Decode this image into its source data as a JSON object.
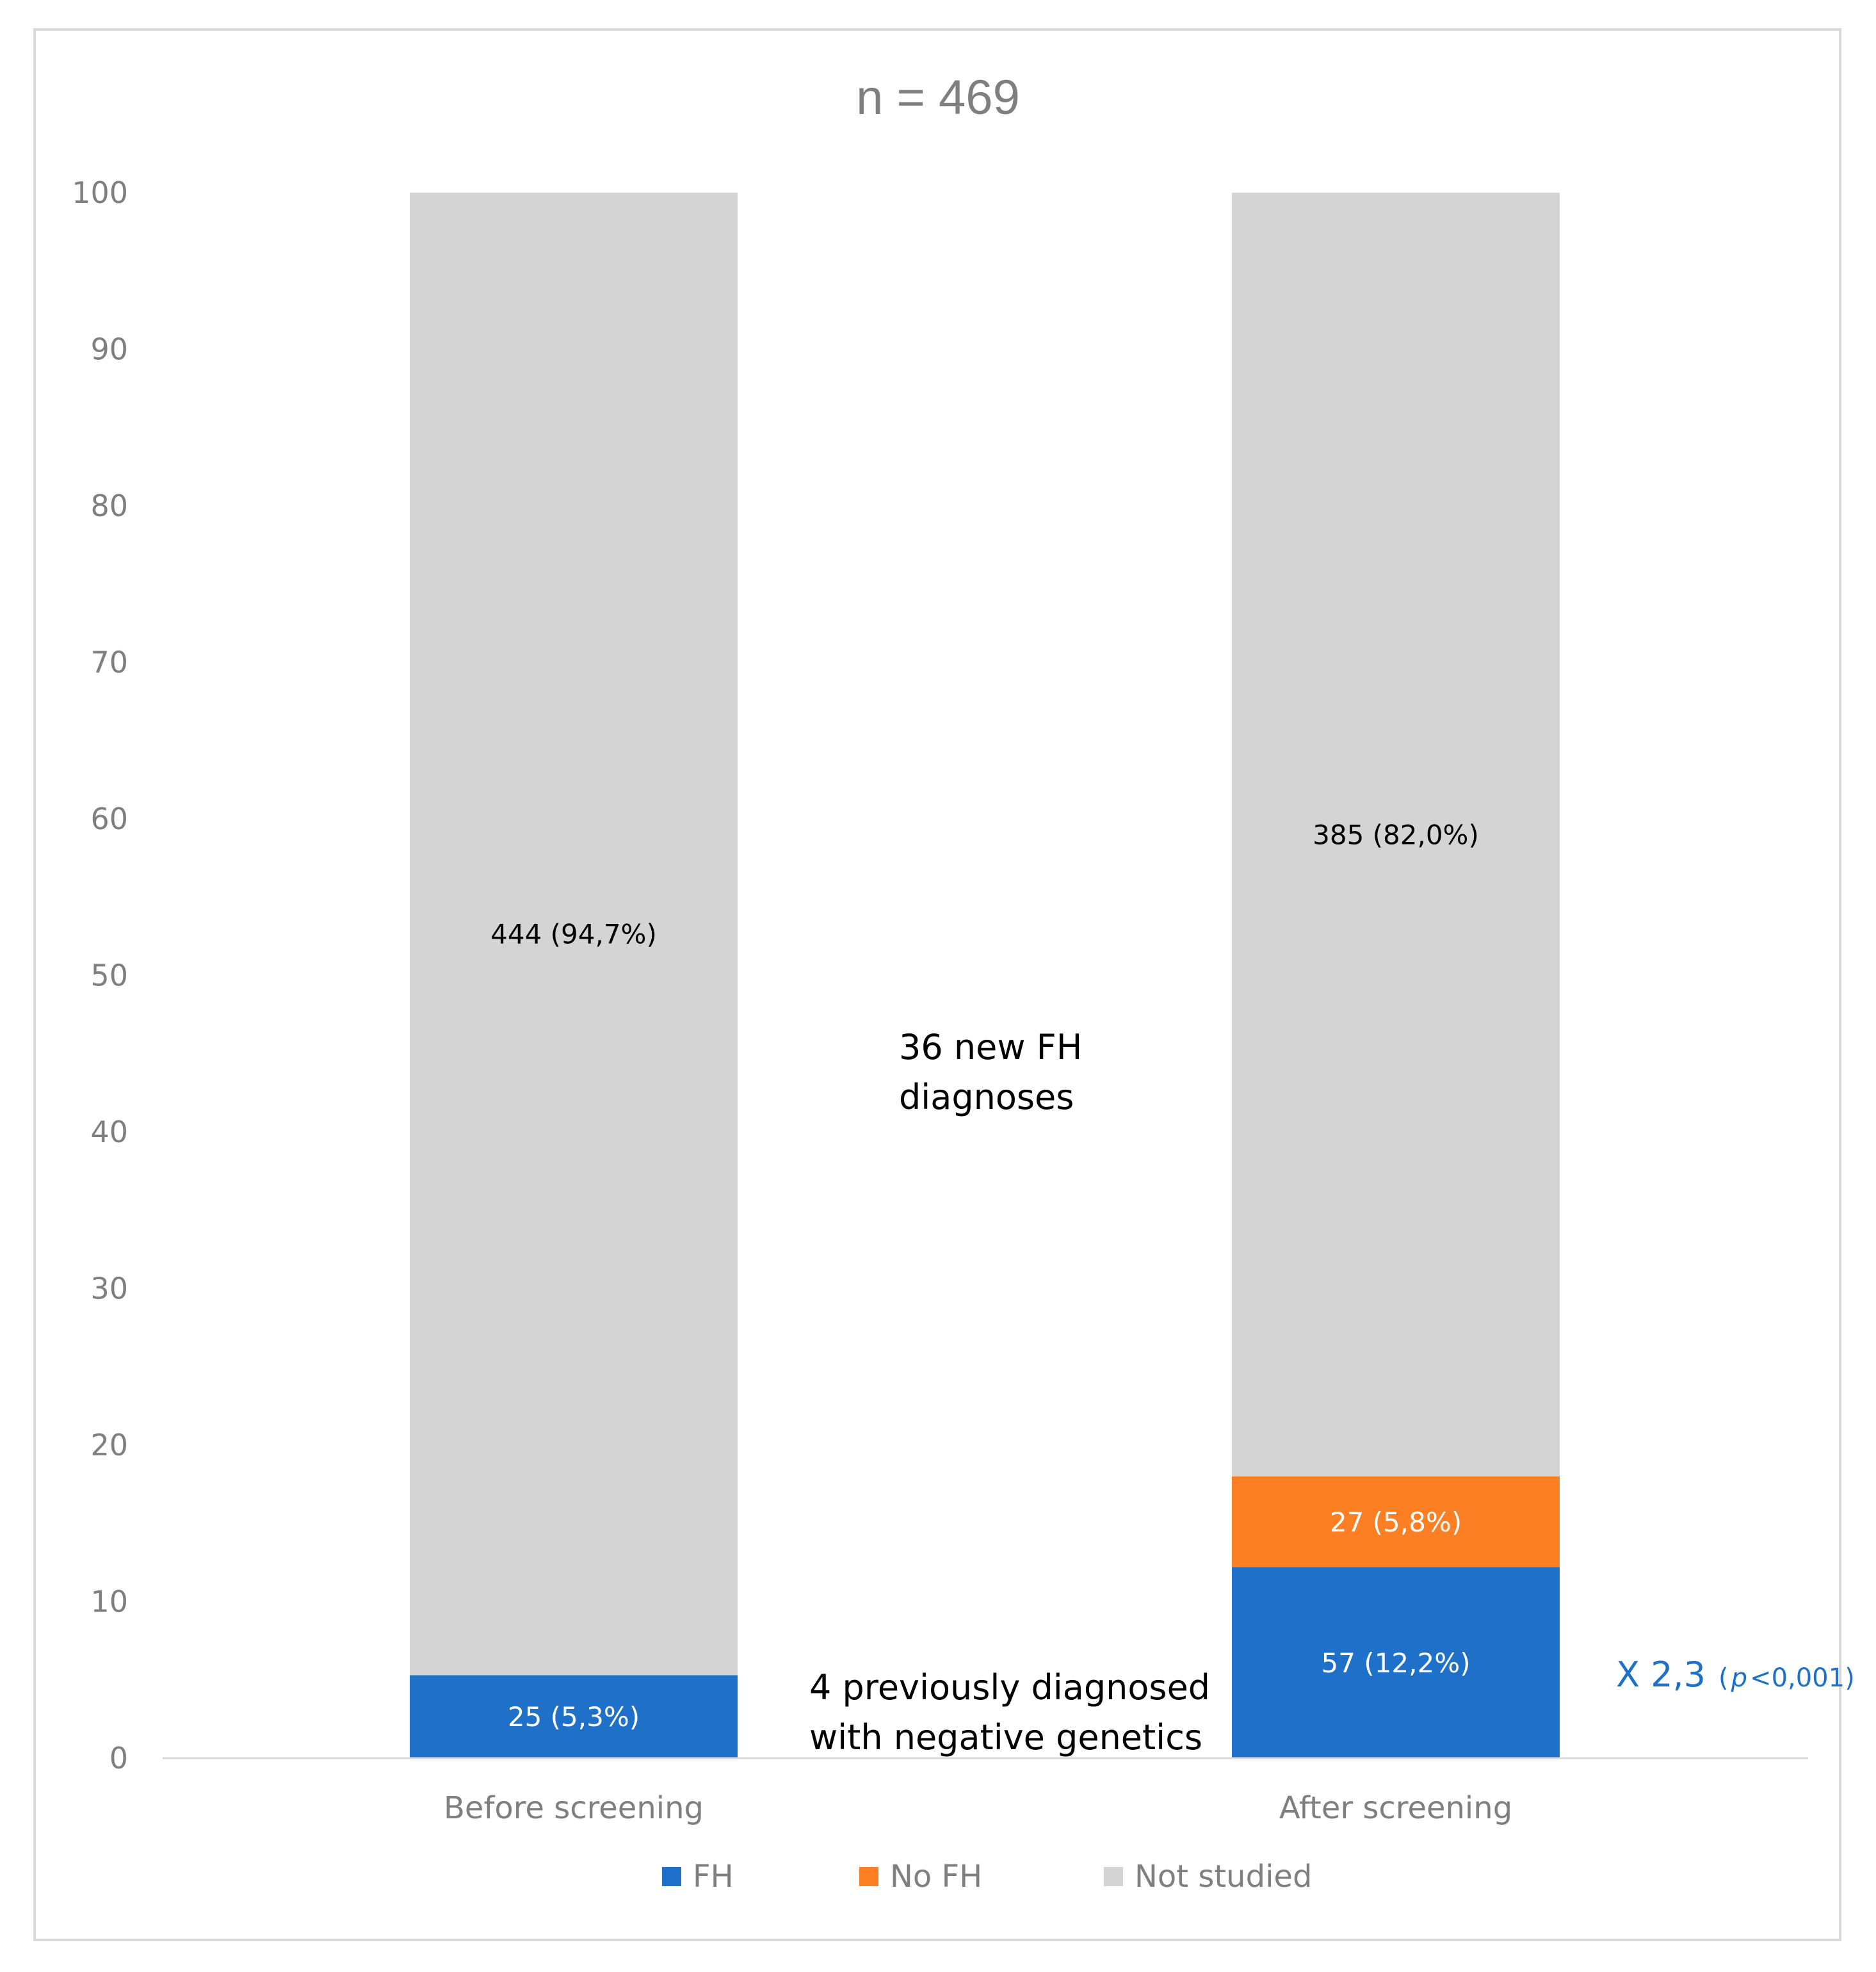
{
  "chart_data": {
    "type": "bar",
    "stacked": true,
    "title": "n = 469",
    "categories": [
      "Before screening",
      "After screening"
    ],
    "ylim": [
      0,
      100
    ],
    "yticks": [
      0,
      10,
      20,
      30,
      40,
      50,
      60,
      70,
      80,
      90,
      100
    ],
    "grid": false,
    "legend_position": "bottom",
    "series": [
      {
        "name": "FH",
        "color": "#1f70c8",
        "values": [
          5.3,
          12.2
        ],
        "labels": [
          "25 (5,3%)",
          "57 (12,2%)"
        ],
        "label_color": "#ffffff"
      },
      {
        "name": "No FH",
        "color": "#fd7f23",
        "values": [
          0,
          5.8
        ],
        "labels": [
          "",
          "27 (5,8%)"
        ],
        "label_color": "#ffffff"
      },
      {
        "name": "Not studied",
        "color": "#d4d4d4",
        "values": [
          94.7,
          82.0
        ],
        "labels": [
          "444 (94,7%)",
          "385 (82,0%)"
        ],
        "label_color": "#000000"
      }
    ],
    "annotations": {
      "new_diagnoses": [
        "36 new FH",
        "diagnoses"
      ],
      "previously_diagnosed": [
        "4 previously diagnosed",
        "with negative genetics"
      ],
      "ratio_main": "X 2,3",
      "ratio_paren_open": "(",
      "ratio_p": "p",
      "ratio_paren_rest": "<0,001)",
      "ratio_color": "#1f70c8"
    }
  }
}
